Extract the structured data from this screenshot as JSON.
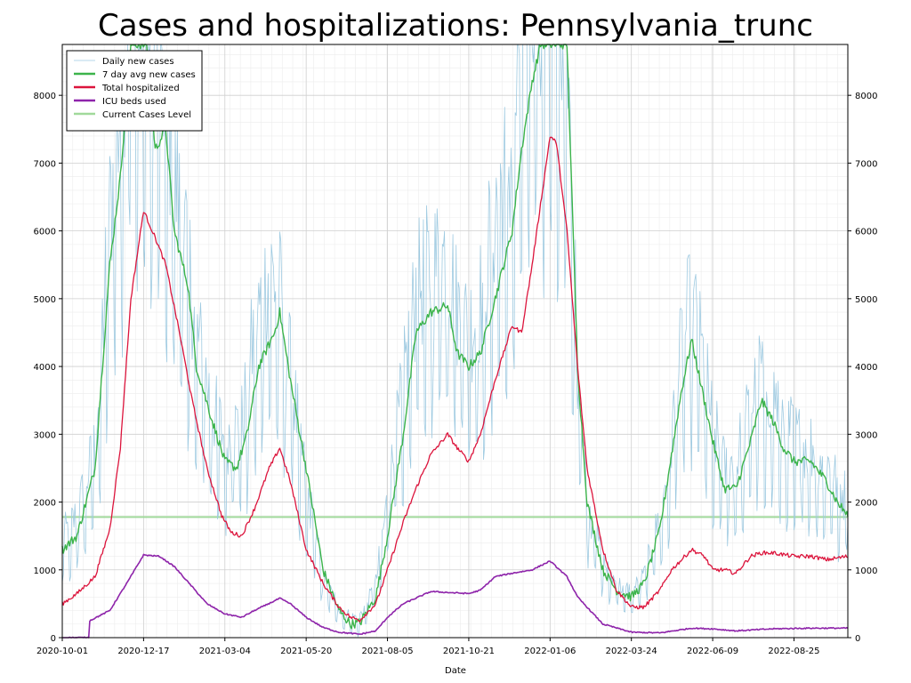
{
  "chart_data": {
    "type": "line",
    "title": "Cases and hospitalizations: Pennsylvania_trunc",
    "xlabel": "Date",
    "ylabel": "",
    "x_ticks": [
      "2020-10-01",
      "2020-12-17",
      "2021-03-04",
      "2021-05-20",
      "2021-08-05",
      "2021-10-21",
      "2022-01-06",
      "2022-03-24",
      "2022-06-09",
      "2022-08-25"
    ],
    "x_range": [
      "2020-10-01",
      "2022-10-15"
    ],
    "ylim": [
      0,
      8750
    ],
    "y_ticks": [
      0,
      1000,
      2000,
      3000,
      4000,
      5000,
      6000,
      7000,
      8000
    ],
    "grid": true,
    "secondary_y_axis": true,
    "legend_position": "top-left",
    "legend": [
      {
        "name": "Daily new cases",
        "color": "#9ecae1"
      },
      {
        "name": "7 day avg new cases",
        "color": "#3cb44b"
      },
      {
        "name": "Total hospitalized",
        "color": "#dc143c"
      },
      {
        "name": "ICU beds used",
        "color": "#8e24aa"
      },
      {
        "name": "Current Cases Level",
        "color": "#a1d99b"
      }
    ],
    "current_cases_level": 1780,
    "series": [
      {
        "name": "Daily new cases",
        "style": "thin-noisy",
        "points": [
          [
            "2020-10-01",
            1300
          ],
          [
            "2020-10-15",
            1600
          ],
          [
            "2020-11-01",
            2500
          ],
          [
            "2020-11-15",
            5500
          ],
          [
            "2020-11-25",
            7000
          ],
          [
            "2020-12-05",
            8750
          ],
          [
            "2020-12-20",
            8750
          ],
          [
            "2021-01-01",
            8000
          ],
          [
            "2021-01-15",
            6000
          ],
          [
            "2021-01-28",
            5000
          ],
          [
            "2021-02-05",
            4000
          ],
          [
            "2021-02-20",
            3000
          ],
          [
            "2021-03-04",
            2600
          ],
          [
            "2021-03-20",
            2800
          ],
          [
            "2021-04-01",
            4000
          ],
          [
            "2021-04-15",
            4800
          ],
          [
            "2021-04-25",
            4500
          ],
          [
            "2021-05-05",
            3500
          ],
          [
            "2021-05-20",
            2000
          ],
          [
            "2021-06-05",
            800
          ],
          [
            "2021-06-20",
            400
          ],
          [
            "2021-07-01",
            200
          ],
          [
            "2021-07-10",
            250
          ],
          [
            "2021-07-25",
            700
          ],
          [
            "2021-08-05",
            1800
          ],
          [
            "2021-08-20",
            3300
          ],
          [
            "2021-09-01",
            4500
          ],
          [
            "2021-09-15",
            4800
          ],
          [
            "2021-10-01",
            5000
          ],
          [
            "2021-10-10",
            4300
          ],
          [
            "2021-10-21",
            4000
          ],
          [
            "2021-11-01",
            4400
          ],
          [
            "2021-11-15",
            5600
          ],
          [
            "2021-12-01",
            6300
          ],
          [
            "2021-12-10",
            8000
          ],
          [
            "2021-12-20",
            8750
          ],
          [
            "2022-01-06",
            8750
          ],
          [
            "2022-01-15",
            8750
          ],
          [
            "2022-01-22",
            7200
          ],
          [
            "2022-02-01",
            3700
          ],
          [
            "2022-02-10",
            1800
          ],
          [
            "2022-02-25",
            1000
          ],
          [
            "2022-03-10",
            700
          ],
          [
            "2022-03-24",
            600
          ],
          [
            "2022-04-05",
            800
          ],
          [
            "2022-04-20",
            1600
          ],
          [
            "2022-05-01",
            2600
          ],
          [
            "2022-05-10",
            3700
          ],
          [
            "2022-05-20",
            4400
          ],
          [
            "2022-06-01",
            3500
          ],
          [
            "2022-06-09",
            2800
          ],
          [
            "2022-06-20",
            2200
          ],
          [
            "2022-07-01",
            2300
          ],
          [
            "2022-07-15",
            3000
          ],
          [
            "2022-07-25",
            3500
          ],
          [
            "2022-08-05",
            3200
          ],
          [
            "2022-08-15",
            2900
          ],
          [
            "2022-08-25",
            2600
          ],
          [
            "2022-09-10",
            2500
          ],
          [
            "2022-09-25",
            2300
          ],
          [
            "2022-10-05",
            2000
          ],
          [
            "2022-10-15",
            1800
          ]
        ]
      },
      {
        "name": "7 day avg new cases",
        "style": "line",
        "points": [
          [
            "2020-10-01",
            1300
          ],
          [
            "2020-10-15",
            1500
          ],
          [
            "2020-11-01",
            2500
          ],
          [
            "2020-11-15",
            5500
          ],
          [
            "2020-11-25",
            6800
          ],
          [
            "2020-12-05",
            8750
          ],
          [
            "2020-12-20",
            8750
          ],
          [
            "2020-12-28",
            7200
          ],
          [
            "2021-01-07",
            7500
          ],
          [
            "2021-01-15",
            6000
          ],
          [
            "2021-01-28",
            5200
          ],
          [
            "2021-02-05",
            4000
          ],
          [
            "2021-02-20",
            3200
          ],
          [
            "2021-03-04",
            2600
          ],
          [
            "2021-03-15",
            2500
          ],
          [
            "2021-03-25",
            3000
          ],
          [
            "2021-04-05",
            4000
          ],
          [
            "2021-04-20",
            4500
          ],
          [
            "2021-04-25",
            4800
          ],
          [
            "2021-05-05",
            3800
          ],
          [
            "2021-05-20",
            2500
          ],
          [
            "2021-06-05",
            1000
          ],
          [
            "2021-06-20",
            400
          ],
          [
            "2021-07-01",
            200
          ],
          [
            "2021-07-10",
            220
          ],
          [
            "2021-07-25",
            600
          ],
          [
            "2021-08-05",
            1500
          ],
          [
            "2021-08-20",
            3000
          ],
          [
            "2021-09-01",
            4500
          ],
          [
            "2021-09-15",
            4800
          ],
          [
            "2021-10-01",
            4900
          ],
          [
            "2021-10-10",
            4200
          ],
          [
            "2021-10-21",
            4000
          ],
          [
            "2021-11-01",
            4200
          ],
          [
            "2021-11-15",
            5000
          ],
          [
            "2021-12-01",
            6000
          ],
          [
            "2021-12-10",
            7200
          ],
          [
            "2021-12-20",
            8200
          ],
          [
            "2021-12-28",
            8750
          ],
          [
            "2022-01-06",
            8750
          ],
          [
            "2022-01-22",
            8750
          ],
          [
            "2022-02-01",
            4000
          ],
          [
            "2022-02-10",
            2000
          ],
          [
            "2022-02-25",
            1000
          ],
          [
            "2022-03-10",
            700
          ],
          [
            "2022-03-24",
            600
          ],
          [
            "2022-04-05",
            800
          ],
          [
            "2022-04-20",
            1600
          ],
          [
            "2022-05-01",
            2700
          ],
          [
            "2022-05-10",
            3600
          ],
          [
            "2022-05-20",
            4400
          ],
          [
            "2022-06-01",
            3500
          ],
          [
            "2022-06-09",
            2900
          ],
          [
            "2022-06-20",
            2200
          ],
          [
            "2022-07-01",
            2200
          ],
          [
            "2022-07-15",
            2900
          ],
          [
            "2022-07-25",
            3500
          ],
          [
            "2022-08-05",
            3200
          ],
          [
            "2022-08-15",
            2800
          ],
          [
            "2022-08-25",
            2600
          ],
          [
            "2022-09-10",
            2600
          ],
          [
            "2022-09-25",
            2300
          ],
          [
            "2022-10-05",
            2000
          ],
          [
            "2022-10-15",
            1800
          ]
        ]
      },
      {
        "name": "Total hospitalized",
        "style": "line",
        "points": [
          [
            "2020-10-01",
            500
          ],
          [
            "2020-10-15",
            650
          ],
          [
            "2020-11-01",
            900
          ],
          [
            "2020-11-15",
            1600
          ],
          [
            "2020-11-25",
            2800
          ],
          [
            "2020-12-05",
            5000
          ],
          [
            "2020-12-17",
            6300
          ],
          [
            "2020-12-28",
            5900
          ],
          [
            "2021-01-07",
            5500
          ],
          [
            "2021-01-20",
            4500
          ],
          [
            "2021-02-01",
            3500
          ],
          [
            "2021-02-15",
            2500
          ],
          [
            "2021-03-01",
            1800
          ],
          [
            "2021-03-10",
            1550
          ],
          [
            "2021-03-20",
            1500
          ],
          [
            "2021-04-01",
            1900
          ],
          [
            "2021-04-15",
            2500
          ],
          [
            "2021-04-25",
            2800
          ],
          [
            "2021-05-05",
            2300
          ],
          [
            "2021-05-20",
            1300
          ],
          [
            "2021-06-05",
            800
          ],
          [
            "2021-06-20",
            450
          ],
          [
            "2021-07-01",
            300
          ],
          [
            "2021-07-10",
            260
          ],
          [
            "2021-07-25",
            500
          ],
          [
            "2021-08-05",
            1000
          ],
          [
            "2021-08-20",
            1700
          ],
          [
            "2021-09-01",
            2200
          ],
          [
            "2021-09-15",
            2700
          ],
          [
            "2021-10-01",
            3000
          ],
          [
            "2021-10-10",
            2800
          ],
          [
            "2021-10-21",
            2600
          ],
          [
            "2021-11-01",
            3000
          ],
          [
            "2021-11-15",
            3800
          ],
          [
            "2021-12-01",
            4600
          ],
          [
            "2021-12-10",
            4500
          ],
          [
            "2021-12-20",
            5500
          ],
          [
            "2022-01-06",
            7400
          ],
          [
            "2022-01-12",
            7300
          ],
          [
            "2022-01-22",
            6000
          ],
          [
            "2022-02-01",
            4000
          ],
          [
            "2022-02-10",
            2500
          ],
          [
            "2022-02-25",
            1300
          ],
          [
            "2022-03-10",
            700
          ],
          [
            "2022-03-24",
            450
          ],
          [
            "2022-04-05",
            450
          ],
          [
            "2022-04-20",
            700
          ],
          [
            "2022-05-01",
            1000
          ],
          [
            "2022-05-20",
            1300
          ],
          [
            "2022-06-01",
            1200
          ],
          [
            "2022-06-09",
            1000
          ],
          [
            "2022-06-20",
            1000
          ],
          [
            "2022-07-01",
            950
          ],
          [
            "2022-07-15",
            1200
          ],
          [
            "2022-07-25",
            1250
          ],
          [
            "2022-08-05",
            1250
          ],
          [
            "2022-08-25",
            1200
          ],
          [
            "2022-09-10",
            1200
          ],
          [
            "2022-09-25",
            1150
          ],
          [
            "2022-10-15",
            1200
          ]
        ]
      },
      {
        "name": "ICU beds used",
        "style": "line",
        "points": [
          [
            "2020-10-01",
            0
          ],
          [
            "2020-10-26",
            0
          ],
          [
            "2020-10-27",
            250
          ],
          [
            "2020-11-15",
            400
          ],
          [
            "2020-12-01",
            800
          ],
          [
            "2020-12-17",
            1220
          ],
          [
            "2021-01-01",
            1200
          ],
          [
            "2021-01-15",
            1050
          ],
          [
            "2021-02-01",
            750
          ],
          [
            "2021-02-15",
            500
          ],
          [
            "2021-03-04",
            350
          ],
          [
            "2021-03-20",
            300
          ],
          [
            "2021-04-01",
            400
          ],
          [
            "2021-04-25",
            580
          ],
          [
            "2021-05-05",
            500
          ],
          [
            "2021-05-20",
            300
          ],
          [
            "2021-06-05",
            150
          ],
          [
            "2021-06-20",
            80
          ],
          [
            "2021-07-10",
            50
          ],
          [
            "2021-07-25",
            100
          ],
          [
            "2021-08-05",
            300
          ],
          [
            "2021-08-20",
            500
          ],
          [
            "2021-09-15",
            680
          ],
          [
            "2021-10-21",
            650
          ],
          [
            "2021-11-01",
            700
          ],
          [
            "2021-11-15",
            900
          ],
          [
            "2021-12-01",
            950
          ],
          [
            "2021-12-20",
            1000
          ],
          [
            "2022-01-06",
            1130
          ],
          [
            "2022-01-22",
            900
          ],
          [
            "2022-02-01",
            600
          ],
          [
            "2022-02-25",
            200
          ],
          [
            "2022-03-24",
            80
          ],
          [
            "2022-04-20",
            70
          ],
          [
            "2022-05-20",
            140
          ],
          [
            "2022-06-09",
            130
          ],
          [
            "2022-07-01",
            100
          ],
          [
            "2022-08-05",
            130
          ],
          [
            "2022-09-10",
            140
          ],
          [
            "2022-10-15",
            140
          ]
        ]
      }
    ]
  }
}
